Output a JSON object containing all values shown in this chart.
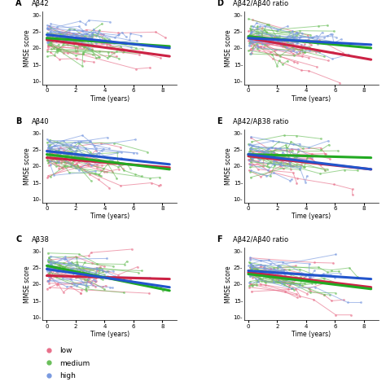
{
  "panels": [
    {
      "label": "A",
      "title": "Aβ42"
    },
    {
      "label": "B",
      "title": "Aβ40"
    },
    {
      "label": "C",
      "title": "Aβ38"
    },
    {
      "label": "D",
      "title": "Aβ42/Aβ40 ratio"
    },
    {
      "label": "E",
      "title": "Aβ42/Aβ38 ratio"
    },
    {
      "label": "F",
      "title": "Aβ42/Aβ40 ratio"
    }
  ],
  "colors": {
    "low": "#e8708a",
    "medium": "#6abf5a",
    "high": "#7a9ae0"
  },
  "trend_colors": {
    "low": "#cc2244",
    "medium": "#22aa22",
    "high": "#2255cc"
  },
  "ylim": [
    9,
    31
  ],
  "xlim": [
    -0.3,
    9.0
  ],
  "yticks": [
    10,
    15,
    20,
    25,
    30
  ],
  "xticks": [
    0,
    2,
    4,
    6,
    8
  ],
  "ylabel": "MMSE score",
  "xlabel": "Time (years)",
  "background_color": "#ffffff",
  "trend_linewidth": 2.2,
  "individual_linewidth": 0.7,
  "individual_alpha": 0.65,
  "marker_size": 2.0
}
